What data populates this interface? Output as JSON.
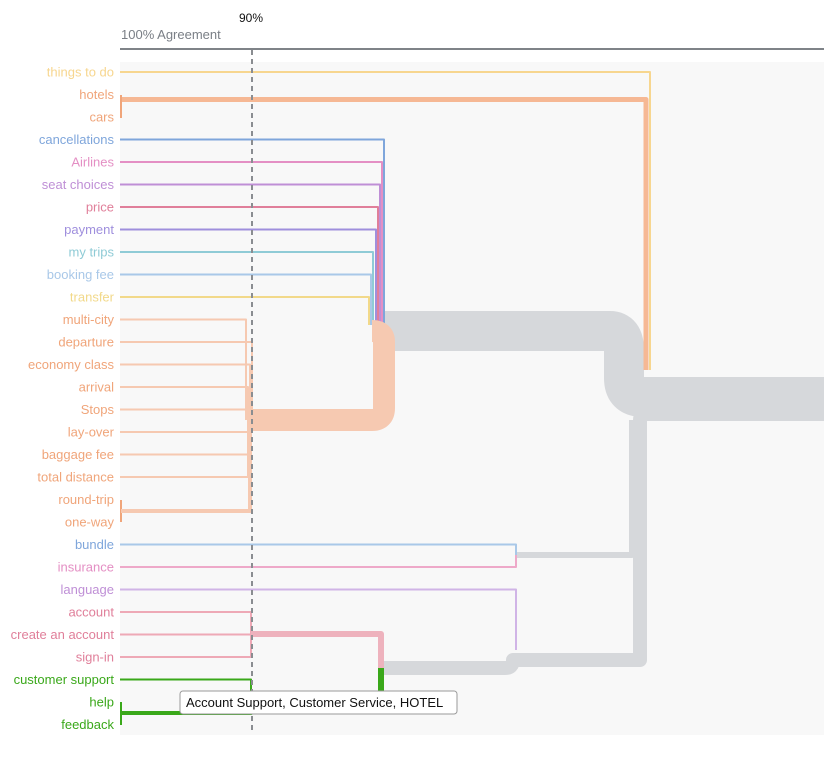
{
  "chart_data": {
    "type": "dendrogram",
    "header_label": "100% Agreement",
    "threshold_label": "90%",
    "tooltip": "Account Support, Customer Service, HOTEL",
    "leaves": [
      {
        "label": "things to do",
        "color": "#f7d68f"
      },
      {
        "label": "hotels",
        "color": "#f0a57a"
      },
      {
        "label": "cars",
        "color": "#f0a57a"
      },
      {
        "label": "cancellations",
        "color": "#7fa6db"
      },
      {
        "label": "Airlines",
        "color": "#e48fc4"
      },
      {
        "label": "seat choices",
        "color": "#bf8fd6"
      },
      {
        "label": "price",
        "color": "#e07f9a"
      },
      {
        "label": "payment",
        "color": "#9f8fdd"
      },
      {
        "label": "my trips",
        "color": "#8fcbd6"
      },
      {
        "label": "booking fee",
        "color": "#a9c8e8"
      },
      {
        "label": "transfer",
        "color": "#f2d98a"
      },
      {
        "label": "multi-city",
        "color": "#f0a57a"
      },
      {
        "label": "departure",
        "color": "#f0a57a"
      },
      {
        "label": "economy class",
        "color": "#f0a57a"
      },
      {
        "label": "arrival",
        "color": "#f0a57a"
      },
      {
        "label": "Stops",
        "color": "#f0a57a"
      },
      {
        "label": "lay-over",
        "color": "#f0a57a"
      },
      {
        "label": "baggage fee",
        "color": "#f0a57a"
      },
      {
        "label": "total distance",
        "color": "#f0a57a"
      },
      {
        "label": "round-trip",
        "color": "#f0a57a"
      },
      {
        "label": "one-way",
        "color": "#f0a57a"
      },
      {
        "label": "bundle",
        "color": "#7fa6db"
      },
      {
        "label": "insurance",
        "color": "#e48fc4"
      },
      {
        "label": "language",
        "color": "#bf8fd6"
      },
      {
        "label": "account",
        "color": "#e07f9a"
      },
      {
        "label": "create an account",
        "color": "#e07f9a"
      },
      {
        "label": "sign-in",
        "color": "#e07f9a"
      },
      {
        "label": "customer support",
        "color": "#3aa81a"
      },
      {
        "label": "help",
        "color": "#3aa81a"
      },
      {
        "label": "feedback",
        "color": "#3aa81a"
      }
    ]
  }
}
